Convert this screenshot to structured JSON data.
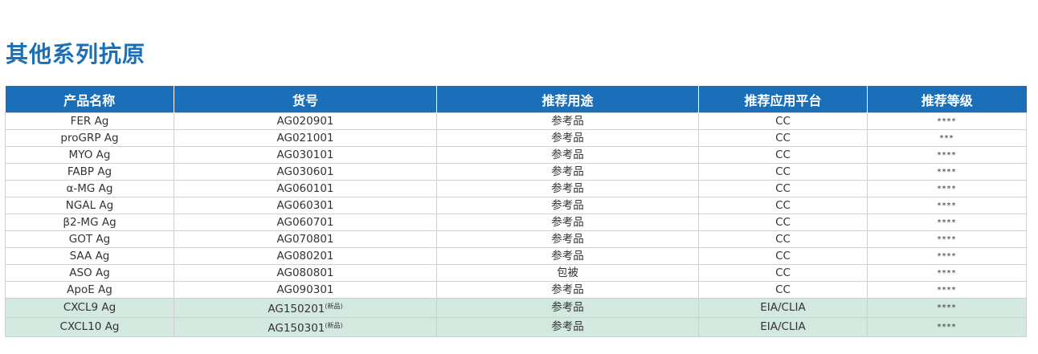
{
  "title": "其他系列抗原",
  "colors": {
    "header_bg": "#1a6fb8",
    "new_row_bg": "#d3e9df",
    "title": "#1a6fb8"
  },
  "table": {
    "headers": [
      "产品名称",
      "货号",
      "推荐用途",
      "推荐应用平台",
      "推荐等级"
    ],
    "rows": [
      {
        "name": "FER Ag",
        "code": "AG020901",
        "tag": "",
        "use": "参考品",
        "platform": "CC",
        "level": "****"
      },
      {
        "name": "proGRP Ag",
        "code": "AG021001",
        "tag": "",
        "use": "参考品",
        "platform": "CC",
        "level": "***"
      },
      {
        "name": "MYO Ag",
        "code": "AG030101",
        "tag": "",
        "use": "参考品",
        "platform": "CC",
        "level": "****"
      },
      {
        "name": "FABP Ag",
        "code": "AG030601",
        "tag": "",
        "use": "参考品",
        "platform": "CC",
        "level": "****"
      },
      {
        "name": "α-MG Ag",
        "code": "AG060101",
        "tag": "",
        "use": "参考品",
        "platform": "CC",
        "level": "****"
      },
      {
        "name": "NGAL Ag",
        "code": "AG060301",
        "tag": "",
        "use": "参考品",
        "platform": "CC",
        "level": "****"
      },
      {
        "name": "β2-MG Ag",
        "code": "AG060701",
        "tag": "",
        "use": "参考品",
        "platform": "CC",
        "level": "****"
      },
      {
        "name": "GOT Ag",
        "code": "AG070801",
        "tag": "",
        "use": "参考品",
        "platform": "CC",
        "level": "****"
      },
      {
        "name": "SAA Ag",
        "code": "AG080201",
        "tag": "",
        "use": "参考品",
        "platform": "CC",
        "level": "****"
      },
      {
        "name": "ASO Ag",
        "code": "AG080801",
        "tag": "",
        "use": "包被",
        "platform": "CC",
        "level": "****"
      },
      {
        "name": "ApoE Ag",
        "code": "AG090301",
        "tag": "",
        "use": "参考品",
        "platform": "CC",
        "level": "****"
      },
      {
        "name": "CXCL9 Ag",
        "code": "AG150201",
        "tag": "(新品)",
        "use": "参考品",
        "platform": "EIA/CLIA",
        "level": "****",
        "is_new": true
      },
      {
        "name": "CXCL10 Ag",
        "code": "AG150301",
        "tag": "(新品)",
        "use": "参考品",
        "platform": "EIA/CLIA",
        "level": "****",
        "is_new": true
      }
    ]
  }
}
